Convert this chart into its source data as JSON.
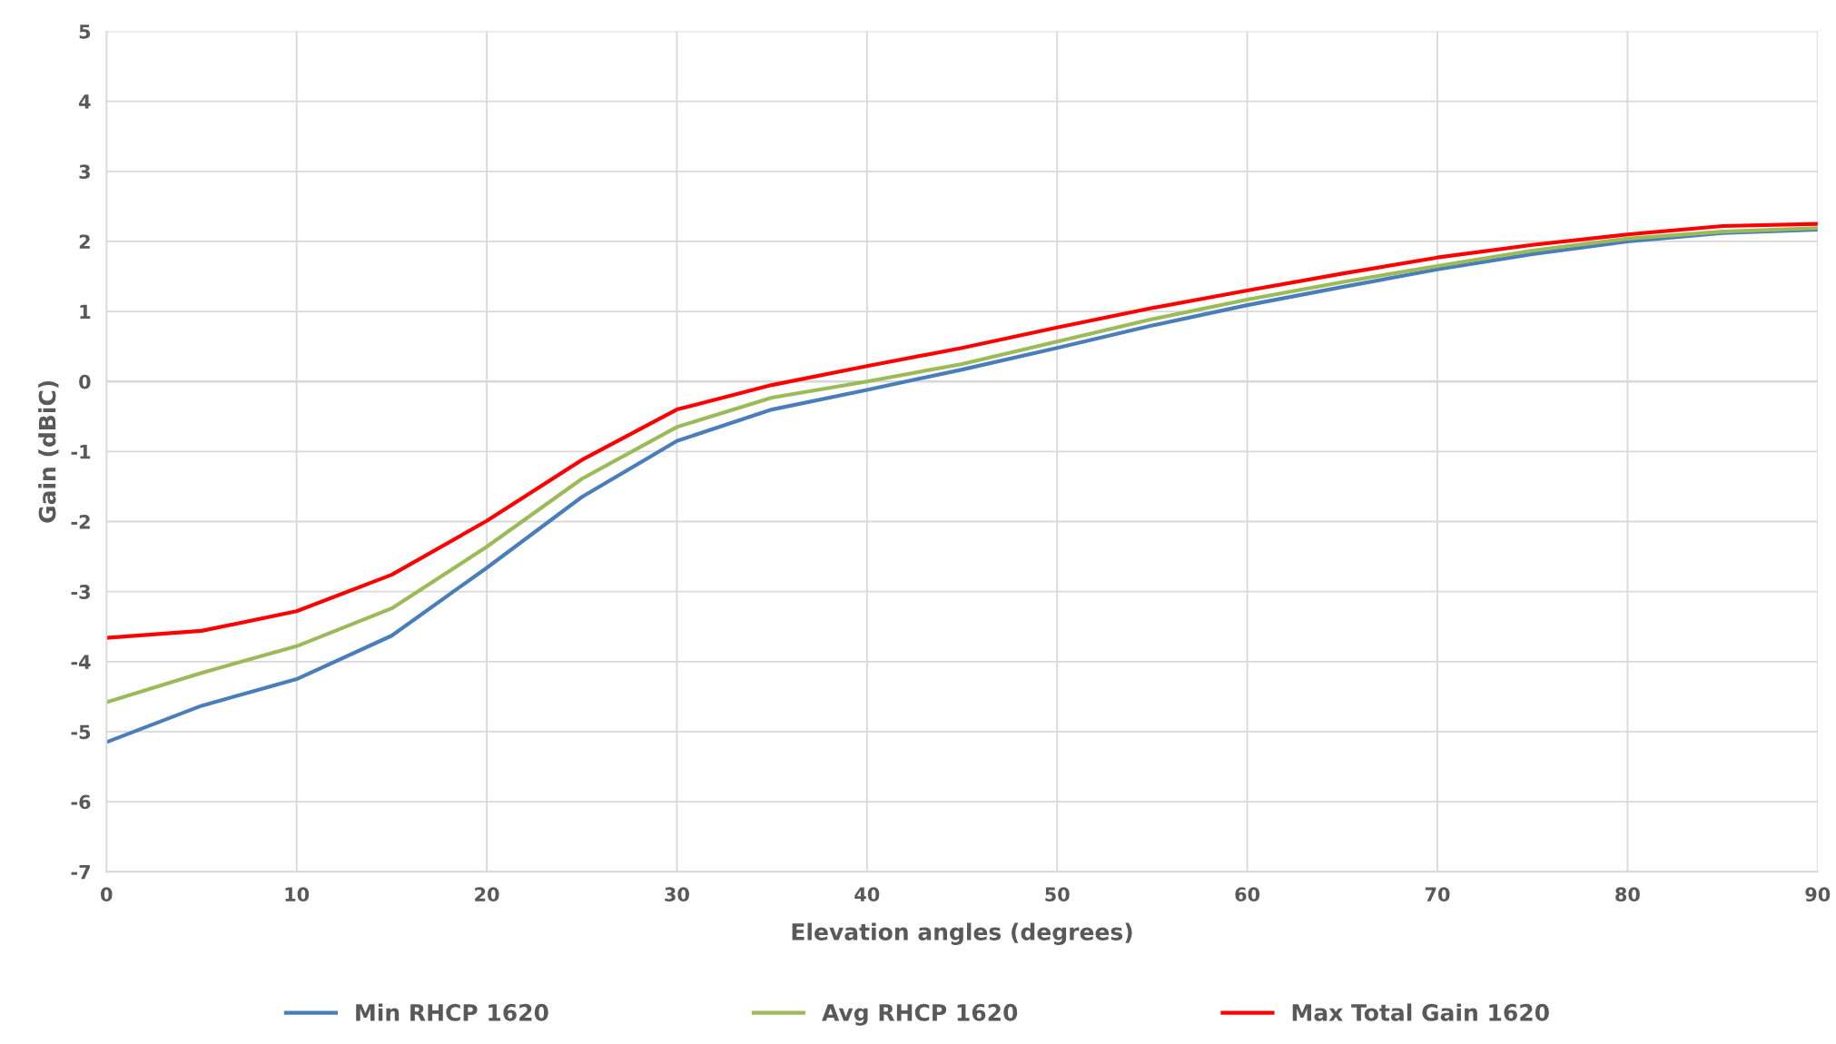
{
  "chart_data": {
    "type": "line",
    "xlabel": "Elevation angles (degrees)",
    "ylabel": "Gain (dBiC)",
    "x": [
      0,
      5,
      10,
      15,
      20,
      25,
      30,
      35,
      40,
      45,
      50,
      55,
      60,
      65,
      70,
      75,
      80,
      85,
      90
    ],
    "series": [
      {
        "name": "Min RHCP 1620",
        "color": "#4a7ebb",
        "values": [
          -5.15,
          -4.63,
          -4.25,
          -3.63,
          -2.66,
          -1.65,
          -0.85,
          -0.4,
          -0.12,
          0.17,
          0.48,
          0.8,
          1.09,
          1.35,
          1.6,
          1.82,
          2.0,
          2.12,
          2.17
        ]
      },
      {
        "name": "Avg RHCP 1620",
        "color": "#9bbb59",
        "values": [
          -4.58,
          -4.16,
          -3.78,
          -3.24,
          -2.36,
          -1.39,
          -0.65,
          -0.23,
          0.0,
          0.25,
          0.57,
          0.89,
          1.17,
          1.42,
          1.65,
          1.87,
          2.04,
          2.14,
          2.19
        ]
      },
      {
        "name": "Max Total Gain 1620",
        "color": "#ff0000",
        "values": [
          -3.66,
          -3.56,
          -3.28,
          -2.76,
          -1.99,
          -1.12,
          -0.4,
          -0.05,
          0.22,
          0.48,
          0.77,
          1.05,
          1.3,
          1.54,
          1.77,
          1.95,
          2.1,
          2.22,
          2.25
        ]
      }
    ],
    "xlim": [
      0,
      90
    ],
    "xticks": [
      0,
      10,
      20,
      30,
      40,
      50,
      60,
      70,
      80,
      90
    ],
    "ylim": [
      -7,
      5
    ],
    "yticks": [
      -7,
      -6,
      -5,
      -4,
      -3,
      -2,
      -1,
      0,
      1,
      2,
      3,
      4,
      5
    ],
    "grid": true,
    "legend": "bottom",
    "marker": "none",
    "line_style": "solid"
  }
}
